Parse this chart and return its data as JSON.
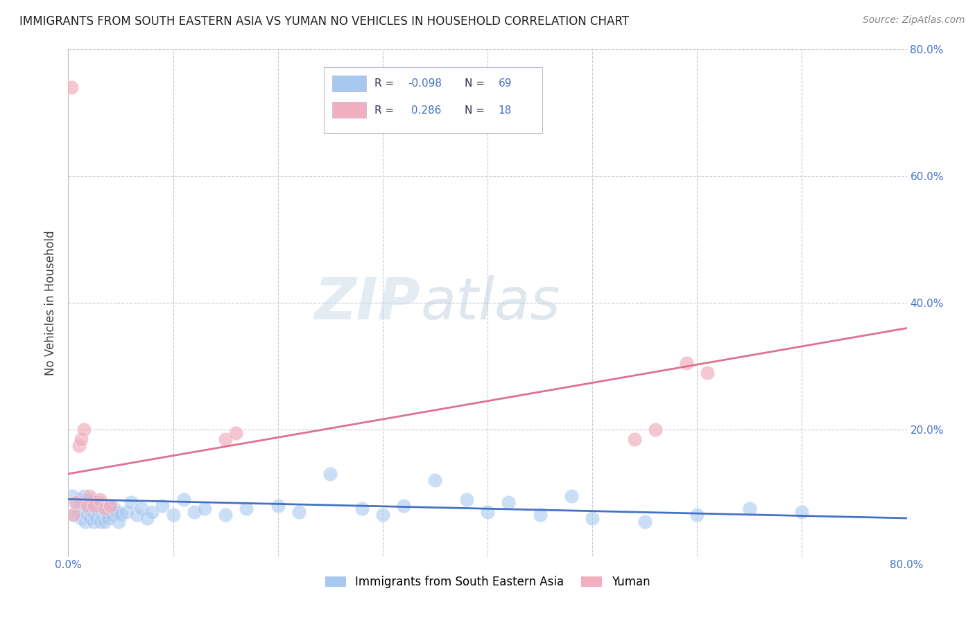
{
  "title": "IMMIGRANTS FROM SOUTH EASTERN ASIA VS YUMAN NO VEHICLES IN HOUSEHOLD CORRELATION CHART",
  "source": "Source: ZipAtlas.com",
  "ylabel": "No Vehicles in Household",
  "xlim": [
    0.0,
    0.8
  ],
  "ylim": [
    0.0,
    0.8
  ],
  "legend_label1": "Immigrants from South Eastern Asia",
  "legend_label2": "Yuman",
  "R1": "-0.098",
  "N1": "69",
  "R2": "0.286",
  "N2": "18",
  "color_blue": "#a8c8f0",
  "color_pink": "#f0b0c0",
  "line_color_blue": "#4472c4",
  "line_color_pink": "#e07090",
  "watermark_zip": "ZIP",
  "watermark_atlas": "atlas",
  "background_color": "#ffffff",
  "grid_color": "#c8c8d8",
  "title_color": "#222222",
  "source_color": "#888888",
  "label_color": "#4472c4",
  "blue_scatter_x": [
    0.004,
    0.006,
    0.008,
    0.009,
    0.01,
    0.011,
    0.012,
    0.013,
    0.014,
    0.015,
    0.016,
    0.017,
    0.018,
    0.019,
    0.02,
    0.021,
    0.022,
    0.023,
    0.024,
    0.025,
    0.026,
    0.027,
    0.028,
    0.029,
    0.03,
    0.031,
    0.032,
    0.033,
    0.034,
    0.035,
    0.036,
    0.037,
    0.038,
    0.04,
    0.042,
    0.044,
    0.046,
    0.048,
    0.05,
    0.055,
    0.06,
    0.065,
    0.07,
    0.075,
    0.08,
    0.09,
    0.1,
    0.11,
    0.12,
    0.13,
    0.15,
    0.17,
    0.2,
    0.22,
    0.25,
    0.28,
    0.3,
    0.32,
    0.35,
    0.38,
    0.4,
    0.42,
    0.45,
    0.48,
    0.5,
    0.55,
    0.6,
    0.65,
    0.7
  ],
  "blue_scatter_y": [
    0.095,
    0.065,
    0.08,
    0.07,
    0.09,
    0.075,
    0.06,
    0.085,
    0.07,
    0.095,
    0.055,
    0.08,
    0.065,
    0.075,
    0.09,
    0.06,
    0.07,
    0.085,
    0.055,
    0.065,
    0.08,
    0.06,
    0.075,
    0.07,
    0.085,
    0.055,
    0.065,
    0.06,
    0.075,
    0.055,
    0.065,
    0.07,
    0.06,
    0.08,
    0.065,
    0.075,
    0.07,
    0.055,
    0.065,
    0.07,
    0.085,
    0.065,
    0.075,
    0.06,
    0.07,
    0.08,
    0.065,
    0.09,
    0.07,
    0.075,
    0.065,
    0.075,
    0.08,
    0.07,
    0.13,
    0.075,
    0.065,
    0.08,
    0.12,
    0.09,
    0.07,
    0.085,
    0.065,
    0.095,
    0.06,
    0.055,
    0.065,
    0.075,
    0.07
  ],
  "pink_scatter_x": [
    0.003,
    0.005,
    0.007,
    0.01,
    0.012,
    0.015,
    0.018,
    0.02,
    0.025,
    0.03,
    0.035,
    0.04,
    0.15,
    0.16,
    0.54,
    0.56,
    0.59,
    0.61
  ],
  "pink_scatter_y": [
    0.74,
    0.065,
    0.085,
    0.175,
    0.185,
    0.2,
    0.08,
    0.095,
    0.08,
    0.09,
    0.075,
    0.08,
    0.185,
    0.195,
    0.185,
    0.2,
    0.305,
    0.29
  ],
  "blue_line_x": [
    0.0,
    0.8
  ],
  "blue_line_y": [
    0.09,
    0.06
  ],
  "pink_line_x": [
    0.0,
    0.8
  ],
  "pink_line_y": [
    0.13,
    0.36
  ]
}
